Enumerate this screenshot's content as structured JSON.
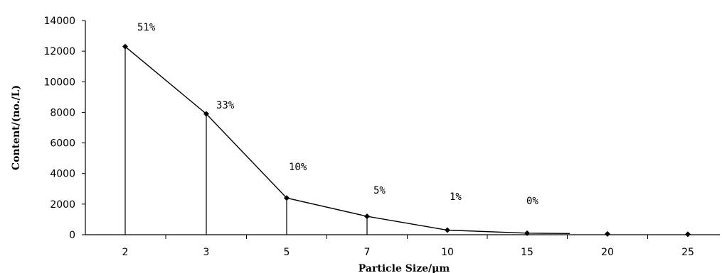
{
  "chart_data": {
    "type": "line",
    "title": "",
    "xlabel": "Particle Size/μm",
    "ylabel": "Content/(no./L)",
    "categories": [
      "2",
      "3",
      "5",
      "7",
      "10",
      "15",
      "20",
      "25"
    ],
    "values": [
      12300,
      7900,
      2400,
      1200,
      300,
      100,
      50,
      30
    ],
    "point_labels": [
      "51%",
      "33%",
      "10%",
      "5%",
      "1%",
      "0%",
      "",
      ""
    ],
    "ylim": [
      0,
      14000
    ],
    "yticks": [
      "0",
      "2000",
      "4000",
      "6000",
      "8000",
      "10000",
      "12000",
      "14000"
    ],
    "drop_lines": true,
    "grid": false,
    "legend": "none"
  }
}
